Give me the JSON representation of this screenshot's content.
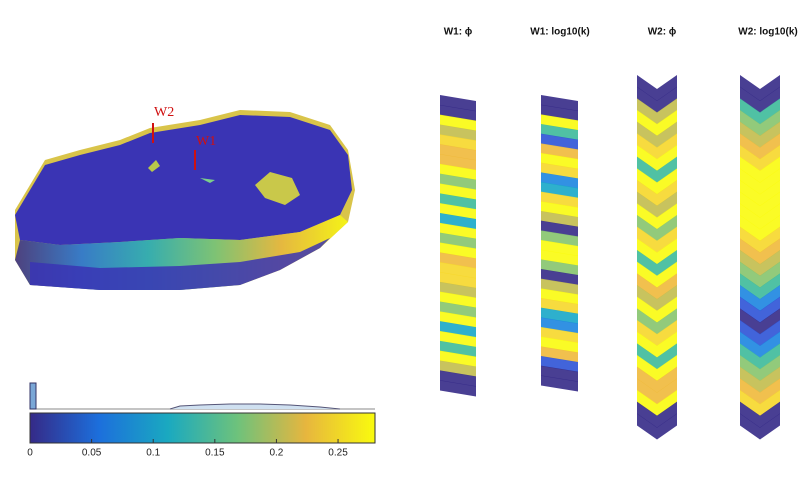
{
  "panels": [
    {
      "title": "W1: ϕ"
    },
    {
      "title": "W1: log10(k)"
    },
    {
      "title": "W2: ϕ"
    },
    {
      "title": "W2: log10(k)"
    }
  ],
  "wells": [
    {
      "label": "W2"
    },
    {
      "label": "W1"
    }
  ],
  "colorbar": {
    "lim": [
      0,
      0.28
    ],
    "ticks": [
      0,
      0.05,
      0.1,
      0.15,
      0.2,
      0.25
    ]
  }
}
